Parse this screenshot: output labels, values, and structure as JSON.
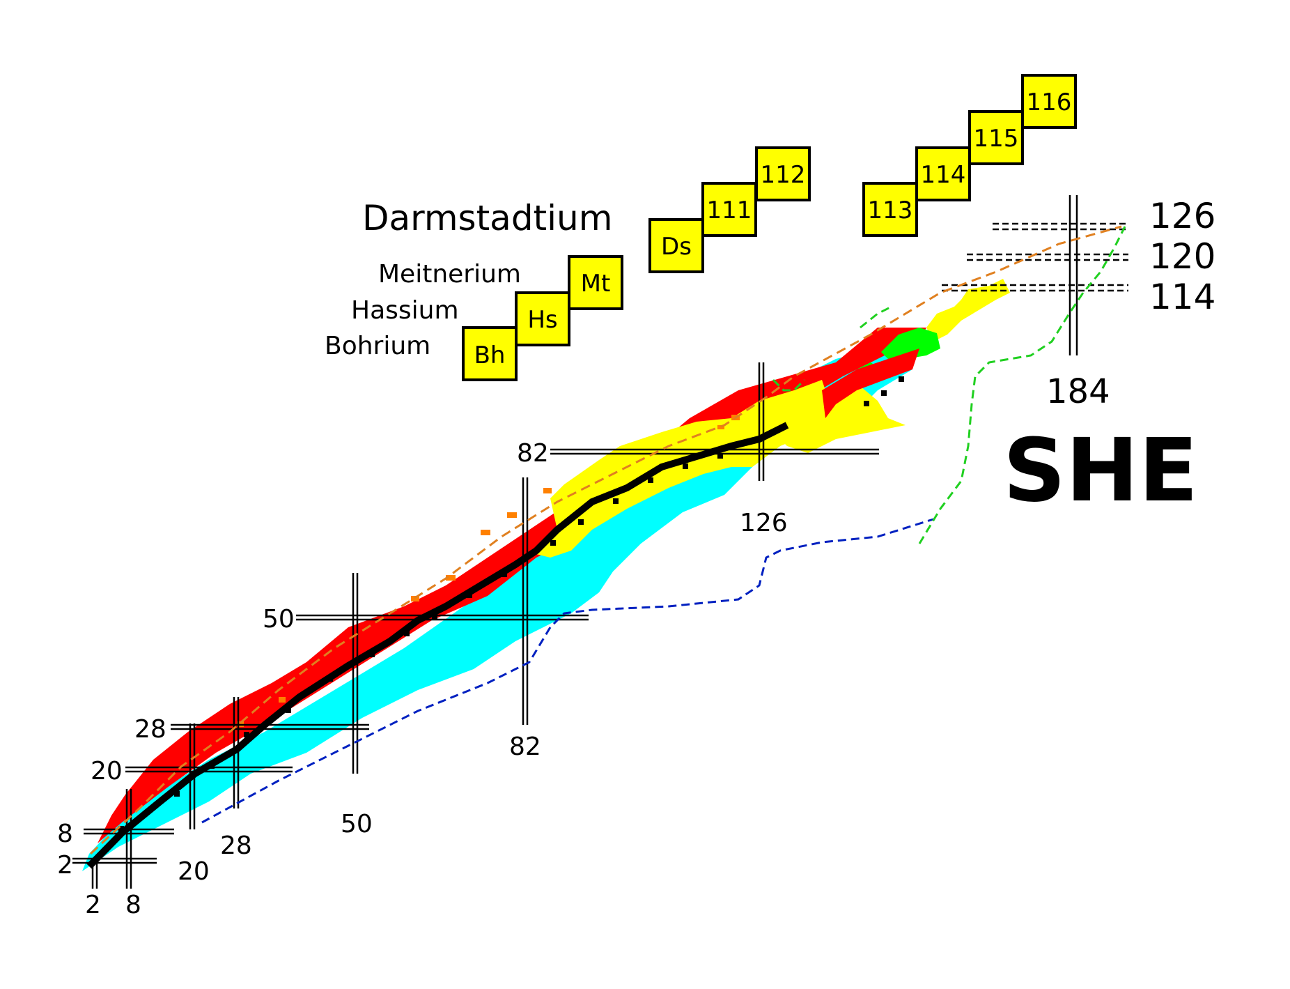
{
  "element_names": {
    "darmstadtium": "Darmstadtium",
    "meitnerium": "Meitnerium",
    "hassium": "Hassium",
    "bohrium": "Bohrium"
  },
  "element_boxes": [
    "Bh",
    "Hs",
    "Mt",
    "Ds",
    "111",
    "112",
    "113",
    "114",
    "115",
    "116"
  ],
  "magic_numbers": {
    "proton": [
      "2",
      "8",
      "20",
      "28",
      "50",
      "82"
    ],
    "neutron": [
      "2",
      "8",
      "20",
      "28",
      "50",
      "82",
      "126"
    ],
    "predicted_proton": [
      "126",
      "120",
      "114"
    ],
    "predicted_neutron": "184"
  },
  "region_label": "SHE",
  "colors": {
    "stable": "#000000",
    "beta_minus": "#00ffff",
    "beta_plus": "#ff0000",
    "alpha": "#ffff00",
    "fission": "#00ff00",
    "proton_emission": "#ff8000",
    "proton_drip_line": "#e08020",
    "neutron_drip_line": "#0020c0",
    "fission_limit": "#20d020",
    "box_fill": "#ffff00"
  }
}
